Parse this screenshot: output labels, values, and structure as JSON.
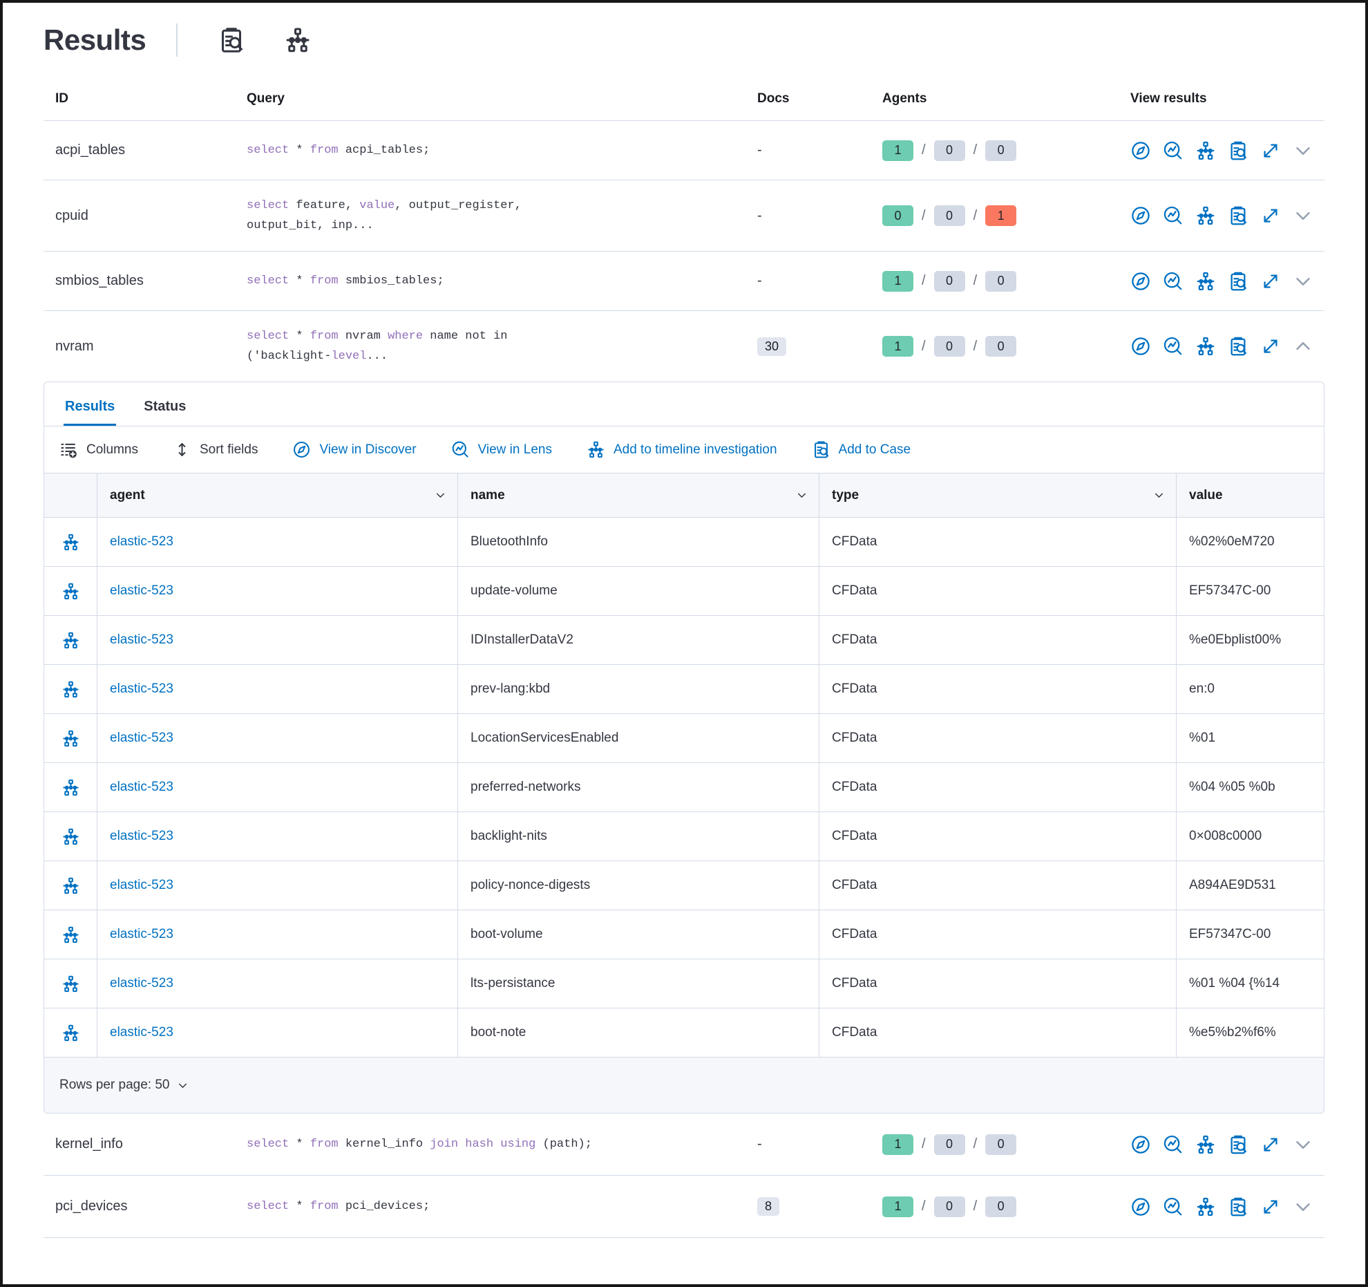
{
  "page": {
    "title": "Results"
  },
  "colors": {
    "accent_blue": "#0071C2",
    "success_badge": "#6DCCB1",
    "danger_badge": "#FA785F",
    "muted_badge": "#D3DAE6",
    "docs_badge_bg": "#E0E5EE",
    "keyword_purple": "#9170B8",
    "text_dark": "#343741",
    "header_text": "#1A1C21",
    "border": "#D3DAE6",
    "header_bg": "#F5F7FA",
    "slash_gray": "#69707D",
    "chevron_gray": "#98A2B3"
  },
  "header_icons": [
    "inspect-icon",
    "timeline-icon"
  ],
  "queries_table": {
    "columns": [
      "ID",
      "Query",
      "Docs",
      "Agents",
      "View results"
    ],
    "sql_keywords": [
      "select",
      "from",
      "where",
      "value",
      "join",
      "using",
      "level",
      "hash"
    ],
    "rows": [
      {
        "id": "acpi_tables",
        "query": "select * from acpi_tables;",
        "docs": "-",
        "agents": [
          {
            "count": "1",
            "status": "success"
          },
          {
            "count": "0",
            "status": "muted"
          },
          {
            "count": "0",
            "status": "muted"
          }
        ]
      },
      {
        "id": "cpuid",
        "query": "select feature, value, output_register,\noutput_bit, inp...",
        "docs": "-",
        "agents": [
          {
            "count": "0",
            "status": "success"
          },
          {
            "count": "0",
            "status": "muted"
          },
          {
            "count": "1",
            "status": "danger"
          }
        ]
      },
      {
        "id": "smbios_tables",
        "query": "select * from smbios_tables;",
        "docs": "-",
        "agents": [
          {
            "count": "1",
            "status": "success"
          },
          {
            "count": "0",
            "status": "muted"
          },
          {
            "count": "0",
            "status": "muted"
          }
        ]
      },
      {
        "id": "nvram",
        "query": "select * from nvram where name not in\n('backlight-level...",
        "docs": "30",
        "agents": [
          {
            "count": "1",
            "status": "success"
          },
          {
            "count": "0",
            "status": "muted"
          },
          {
            "count": "0",
            "status": "muted"
          }
        ]
      },
      {
        "id": "kernel_info",
        "query": "select * from kernel_info join hash using (path);",
        "docs": "-",
        "agents": [
          {
            "count": "1",
            "status": "success"
          },
          {
            "count": "0",
            "status": "muted"
          },
          {
            "count": "0",
            "status": "muted"
          }
        ]
      },
      {
        "id": "pci_devices",
        "query": "select * from pci_devices;",
        "docs": "8",
        "agents": [
          {
            "count": "1",
            "status": "success"
          },
          {
            "count": "0",
            "status": "muted"
          },
          {
            "count": "0",
            "status": "muted"
          }
        ]
      }
    ]
  },
  "results_panel": {
    "tabs": [
      {
        "label": "Results",
        "active": true
      },
      {
        "label": "Status",
        "active": false
      }
    ],
    "toolbar": [
      {
        "label": "Columns",
        "icon": "columns-icon"
      },
      {
        "label": "Sort fields",
        "icon": "sort-icon"
      },
      {
        "label": "View in Discover",
        "icon": "discover-compass-icon"
      },
      {
        "label": "View in Lens",
        "icon": "lens-icon"
      },
      {
        "label": "Add to timeline investigation",
        "icon": "timeline-icon"
      },
      {
        "label": "Add to Case",
        "icon": "add-to-case-icon"
      }
    ],
    "grid": {
      "columns": [
        "agent",
        "name",
        "type",
        "value"
      ],
      "rows": [
        {
          "agent": "elastic-523",
          "name": "BluetoothInfo",
          "type": "CFData",
          "value": "%02%0eM720"
        },
        {
          "agent": "elastic-523",
          "name": "update-volume",
          "type": "CFData",
          "value": "EF57347C-00"
        },
        {
          "agent": "elastic-523",
          "name": "IDInstallerDataV2",
          "type": "CFData",
          "value": "%e0Ebplist00%"
        },
        {
          "agent": "elastic-523",
          "name": "prev-lang:kbd",
          "type": "CFData",
          "value": "en:0"
        },
        {
          "agent": "elastic-523",
          "name": "LocationServicesEnabled",
          "type": "CFData",
          "value": "%01"
        },
        {
          "agent": "elastic-523",
          "name": "preferred-networks",
          "type": "CFData",
          "value": "%04 %05 %0b"
        },
        {
          "agent": "elastic-523",
          "name": "backlight-nits",
          "type": "CFData",
          "value": "0×008c0000"
        },
        {
          "agent": "elastic-523",
          "name": "policy-nonce-digests",
          "type": "CFData",
          "value": "A894AE9D531"
        },
        {
          "agent": "elastic-523",
          "name": "boot-volume",
          "type": "CFData",
          "value": "EF57347C-00"
        },
        {
          "agent": "elastic-523",
          "name": "lts-persistance",
          "type": "CFData",
          "value": "%01 %04 {%14"
        },
        {
          "agent": "elastic-523",
          "name": "boot-note",
          "type": "CFData",
          "value": "%e5%b2%f6%"
        }
      ]
    },
    "footer": {
      "rows_per_page_label": "Rows per page: 50"
    }
  }
}
